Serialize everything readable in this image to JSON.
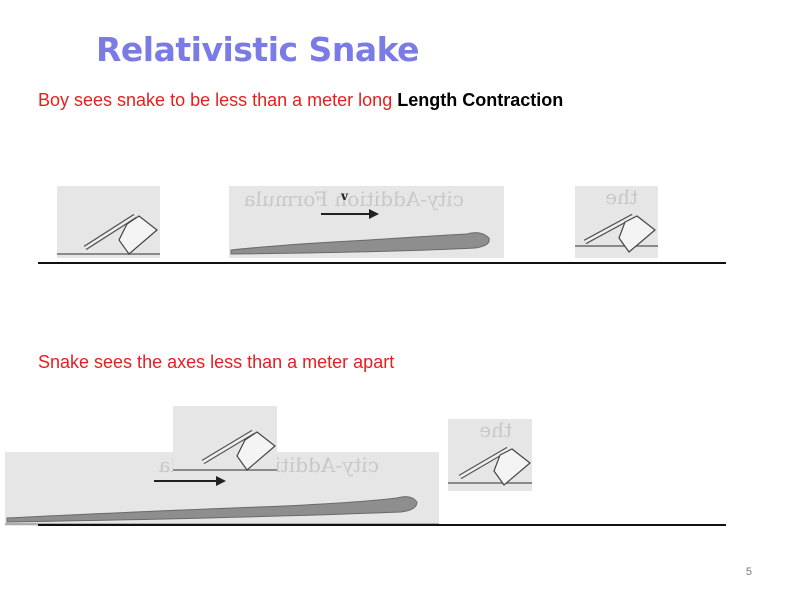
{
  "slide": {
    "title": "Relativistic Snake",
    "page_number": "5"
  },
  "scene_boy": {
    "caption_red": "Boy sees snake to be less than a meter long",
    "caption_bold": "Length Contraction",
    "velocity_label": "v"
  },
  "scene_snake": {
    "caption_red": "Snake sees the axes less than a meter apart"
  },
  "colors": {
    "title": "#7b7be6",
    "caption": "#e61e1e",
    "emphasis": "#000000"
  },
  "icons": [
    "axe-icon",
    "snake-icon",
    "velocity-arrow-icon"
  ]
}
